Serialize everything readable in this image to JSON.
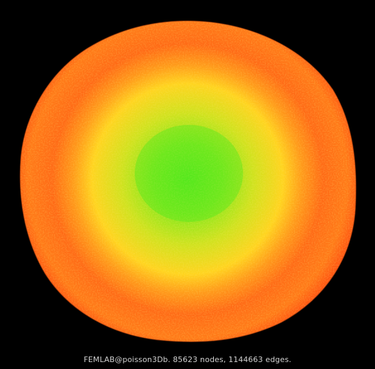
{
  "caption": "FEMLAB@poisson3Db. 85623 nodes, 1144663 edges.",
  "colors": {
    "background": "#000000",
    "outer": "#ff6a1a",
    "outer_edge": "#ff4a10",
    "middle": "#ffd21f",
    "inner": "#66e81c",
    "caption": "#cfcfcf"
  }
}
